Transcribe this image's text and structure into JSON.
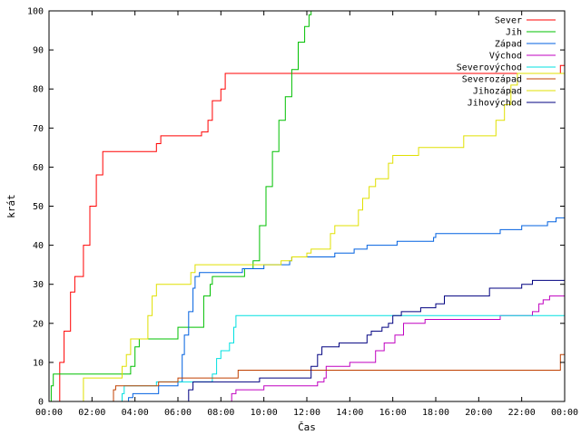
{
  "chart_data": {
    "type": "line",
    "title": "",
    "xlabel": "Čas",
    "ylabel": "krát",
    "xlim": [
      0,
      24
    ],
    "ylim": [
      0,
      100
    ],
    "x_ticks": [
      "00:00",
      "02:00",
      "04:00",
      "06:00",
      "08:00",
      "10:00",
      "12:00",
      "14:00",
      "16:00",
      "18:00",
      "20:00",
      "22:00",
      "00:00"
    ],
    "y_ticks": [
      0,
      10,
      20,
      30,
      40,
      50,
      60,
      70,
      80,
      90,
      100
    ],
    "grid": false,
    "legend_position": "top-right",
    "series": [
      {
        "name": "Sever",
        "color": "#ff0000",
        "points": [
          [
            0.3,
            0
          ],
          [
            0.5,
            10
          ],
          [
            0.7,
            18
          ],
          [
            1.0,
            28
          ],
          [
            1.2,
            32
          ],
          [
            1.4,
            32
          ],
          [
            1.6,
            40
          ],
          [
            1.9,
            50
          ],
          [
            2.2,
            58
          ],
          [
            2.5,
            64
          ],
          [
            3.0,
            64
          ],
          [
            4.0,
            64
          ],
          [
            4.8,
            64
          ],
          [
            5.0,
            66
          ],
          [
            5.2,
            68
          ],
          [
            6.0,
            68
          ],
          [
            6.9,
            68
          ],
          [
            7.1,
            69
          ],
          [
            7.4,
            72
          ],
          [
            7.6,
            77
          ],
          [
            7.9,
            77
          ],
          [
            8.0,
            80
          ],
          [
            8.2,
            84
          ],
          [
            10,
            84
          ],
          [
            12,
            84
          ],
          [
            15,
            84
          ],
          [
            18,
            84
          ],
          [
            21,
            84
          ],
          [
            23.6,
            84
          ],
          [
            23.8,
            86
          ],
          [
            24,
            91
          ]
        ]
      },
      {
        "name": "Jih",
        "color": "#00c000",
        "points": [
          [
            0,
            0
          ],
          [
            0.1,
            4
          ],
          [
            0.2,
            7
          ],
          [
            2,
            7
          ],
          [
            3.6,
            7
          ],
          [
            3.8,
            9
          ],
          [
            4.0,
            14
          ],
          [
            4.2,
            16
          ],
          [
            5.8,
            16
          ],
          [
            6.0,
            19
          ],
          [
            6.8,
            19
          ],
          [
            7.2,
            27
          ],
          [
            7.5,
            30
          ],
          [
            7.6,
            32
          ],
          [
            8.9,
            32
          ],
          [
            9.1,
            34
          ],
          [
            9.5,
            36
          ],
          [
            9.8,
            45
          ],
          [
            10.1,
            55
          ],
          [
            10.4,
            64
          ],
          [
            10.7,
            72
          ],
          [
            11.0,
            78
          ],
          [
            11.3,
            85
          ],
          [
            11.6,
            92
          ],
          [
            11.9,
            96
          ],
          [
            12.1,
            99
          ],
          [
            12.2,
            100
          ]
        ]
      },
      {
        "name": "Západ",
        "color": "#0060e0",
        "points": [
          [
            3.4,
            0
          ],
          [
            3.7,
            1
          ],
          [
            3.9,
            2
          ],
          [
            5,
            2
          ],
          [
            5.1,
            4
          ],
          [
            5.9,
            4
          ],
          [
            6.0,
            5
          ],
          [
            6.2,
            12
          ],
          [
            6.3,
            17
          ],
          [
            6.5,
            23
          ],
          [
            6.7,
            29
          ],
          [
            6.8,
            32
          ],
          [
            7.0,
            33
          ],
          [
            8.5,
            33
          ],
          [
            9.0,
            34
          ],
          [
            10.0,
            35
          ],
          [
            11.2,
            36
          ],
          [
            11.3,
            37
          ],
          [
            12.0,
            37
          ],
          [
            13.0,
            37
          ],
          [
            13.3,
            38
          ],
          [
            14.2,
            39
          ],
          [
            14.8,
            40
          ],
          [
            16.2,
            41
          ],
          [
            17.9,
            42
          ],
          [
            18.0,
            43
          ],
          [
            19.5,
            43
          ],
          [
            20.8,
            43
          ],
          [
            21.0,
            44
          ],
          [
            22.0,
            45
          ],
          [
            23.2,
            46
          ],
          [
            23.6,
            47
          ],
          [
            24,
            47
          ]
        ]
      },
      {
        "name": "Východ",
        "color": "#c000c0",
        "points": [
          [
            8.4,
            0
          ],
          [
            8.5,
            2
          ],
          [
            8.7,
            3
          ],
          [
            9.8,
            3
          ],
          [
            10.0,
            4
          ],
          [
            12.2,
            4
          ],
          [
            12.5,
            5
          ],
          [
            12.8,
            6
          ],
          [
            12.9,
            9
          ],
          [
            13.9,
            9
          ],
          [
            14.0,
            10
          ],
          [
            15.0,
            10
          ],
          [
            15.2,
            13
          ],
          [
            15.6,
            15
          ],
          [
            16.1,
            17
          ],
          [
            16.5,
            20
          ],
          [
            17.2,
            20
          ],
          [
            17.5,
            21
          ],
          [
            18.0,
            21
          ],
          [
            20.0,
            21
          ],
          [
            20.7,
            21
          ],
          [
            21.0,
            22
          ],
          [
            21.8,
            22
          ],
          [
            22.5,
            23
          ],
          [
            22.8,
            25
          ],
          [
            23.0,
            26
          ],
          [
            23.3,
            27
          ],
          [
            24,
            27
          ]
        ]
      },
      {
        "name": "Severovýchod",
        "color": "#00e0e0",
        "points": [
          [
            3.2,
            0
          ],
          [
            3.4,
            2
          ],
          [
            3.5,
            4
          ],
          [
            4.8,
            4
          ],
          [
            5.0,
            5
          ],
          [
            7.5,
            5
          ],
          [
            7.6,
            7
          ],
          [
            7.8,
            11
          ],
          [
            8.0,
            13
          ],
          [
            8.3,
            13
          ],
          [
            8.4,
            15
          ],
          [
            8.6,
            19
          ],
          [
            8.7,
            22
          ],
          [
            12,
            22
          ],
          [
            18,
            22
          ],
          [
            24,
            22
          ]
        ]
      },
      {
        "name": "Severozápad",
        "color": "#c04000",
        "points": [
          [
            2.9,
            0
          ],
          [
            3.0,
            3
          ],
          [
            3.1,
            4
          ],
          [
            5.0,
            4
          ],
          [
            5.1,
            5
          ],
          [
            5.8,
            5
          ],
          [
            6.0,
            6
          ],
          [
            8.7,
            6
          ],
          [
            8.8,
            8
          ],
          [
            13.6,
            8
          ],
          [
            17.9,
            8
          ],
          [
            18.0,
            8
          ],
          [
            23.6,
            8
          ],
          [
            23.8,
            12
          ],
          [
            24,
            12
          ]
        ]
      },
      {
        "name": "Jihozápad",
        "color": "#e0e000",
        "points": [
          [
            1.5,
            0
          ],
          [
            1.6,
            6
          ],
          [
            2.5,
            6
          ],
          [
            3.1,
            6
          ],
          [
            3.4,
            9
          ],
          [
            3.6,
            12
          ],
          [
            3.8,
            16
          ],
          [
            4.4,
            16
          ],
          [
            4.6,
            22
          ],
          [
            4.8,
            27
          ],
          [
            5.0,
            30
          ],
          [
            6.4,
            30
          ],
          [
            6.6,
            33
          ],
          [
            6.8,
            35
          ],
          [
            7.0,
            35
          ],
          [
            10.7,
            35
          ],
          [
            10.8,
            36
          ],
          [
            11.3,
            37
          ],
          [
            11.6,
            37
          ],
          [
            12.0,
            38
          ],
          [
            12.2,
            39
          ],
          [
            13.0,
            39
          ],
          [
            13.1,
            43
          ],
          [
            13.3,
            45
          ],
          [
            14.0,
            45
          ],
          [
            14.4,
            49
          ],
          [
            14.6,
            52
          ],
          [
            14.9,
            55
          ],
          [
            15.2,
            57
          ],
          [
            15.7,
            57
          ],
          [
            15.8,
            61
          ],
          [
            16.0,
            63
          ],
          [
            17.0,
            63
          ],
          [
            17.2,
            65
          ],
          [
            18.5,
            65
          ],
          [
            19.3,
            68
          ],
          [
            20.5,
            68
          ],
          [
            20.8,
            72
          ],
          [
            21.2,
            76
          ],
          [
            21.5,
            81
          ],
          [
            21.8,
            84
          ],
          [
            24,
            84
          ]
        ]
      },
      {
        "name": "Jihovýchod",
        "color": "#000080",
        "points": [
          [
            6.3,
            0
          ],
          [
            6.5,
            3
          ],
          [
            6.7,
            5
          ],
          [
            9.6,
            5
          ],
          [
            9.8,
            6
          ],
          [
            12.0,
            6
          ],
          [
            12.2,
            9
          ],
          [
            12.5,
            12
          ],
          [
            12.7,
            14
          ],
          [
            13.3,
            14
          ],
          [
            13.5,
            15
          ],
          [
            14.6,
            15
          ],
          [
            14.8,
            17
          ],
          [
            15.0,
            18
          ],
          [
            15.5,
            19
          ],
          [
            15.8,
            20
          ],
          [
            16.0,
            22
          ],
          [
            16.4,
            23
          ],
          [
            17.0,
            23
          ],
          [
            17.3,
            24
          ],
          [
            18.0,
            25
          ],
          [
            18.4,
            27
          ],
          [
            20.0,
            27
          ],
          [
            20.5,
            29
          ],
          [
            21.5,
            29
          ],
          [
            22.0,
            30
          ],
          [
            22.5,
            31
          ],
          [
            24,
            31
          ]
        ]
      }
    ]
  }
}
